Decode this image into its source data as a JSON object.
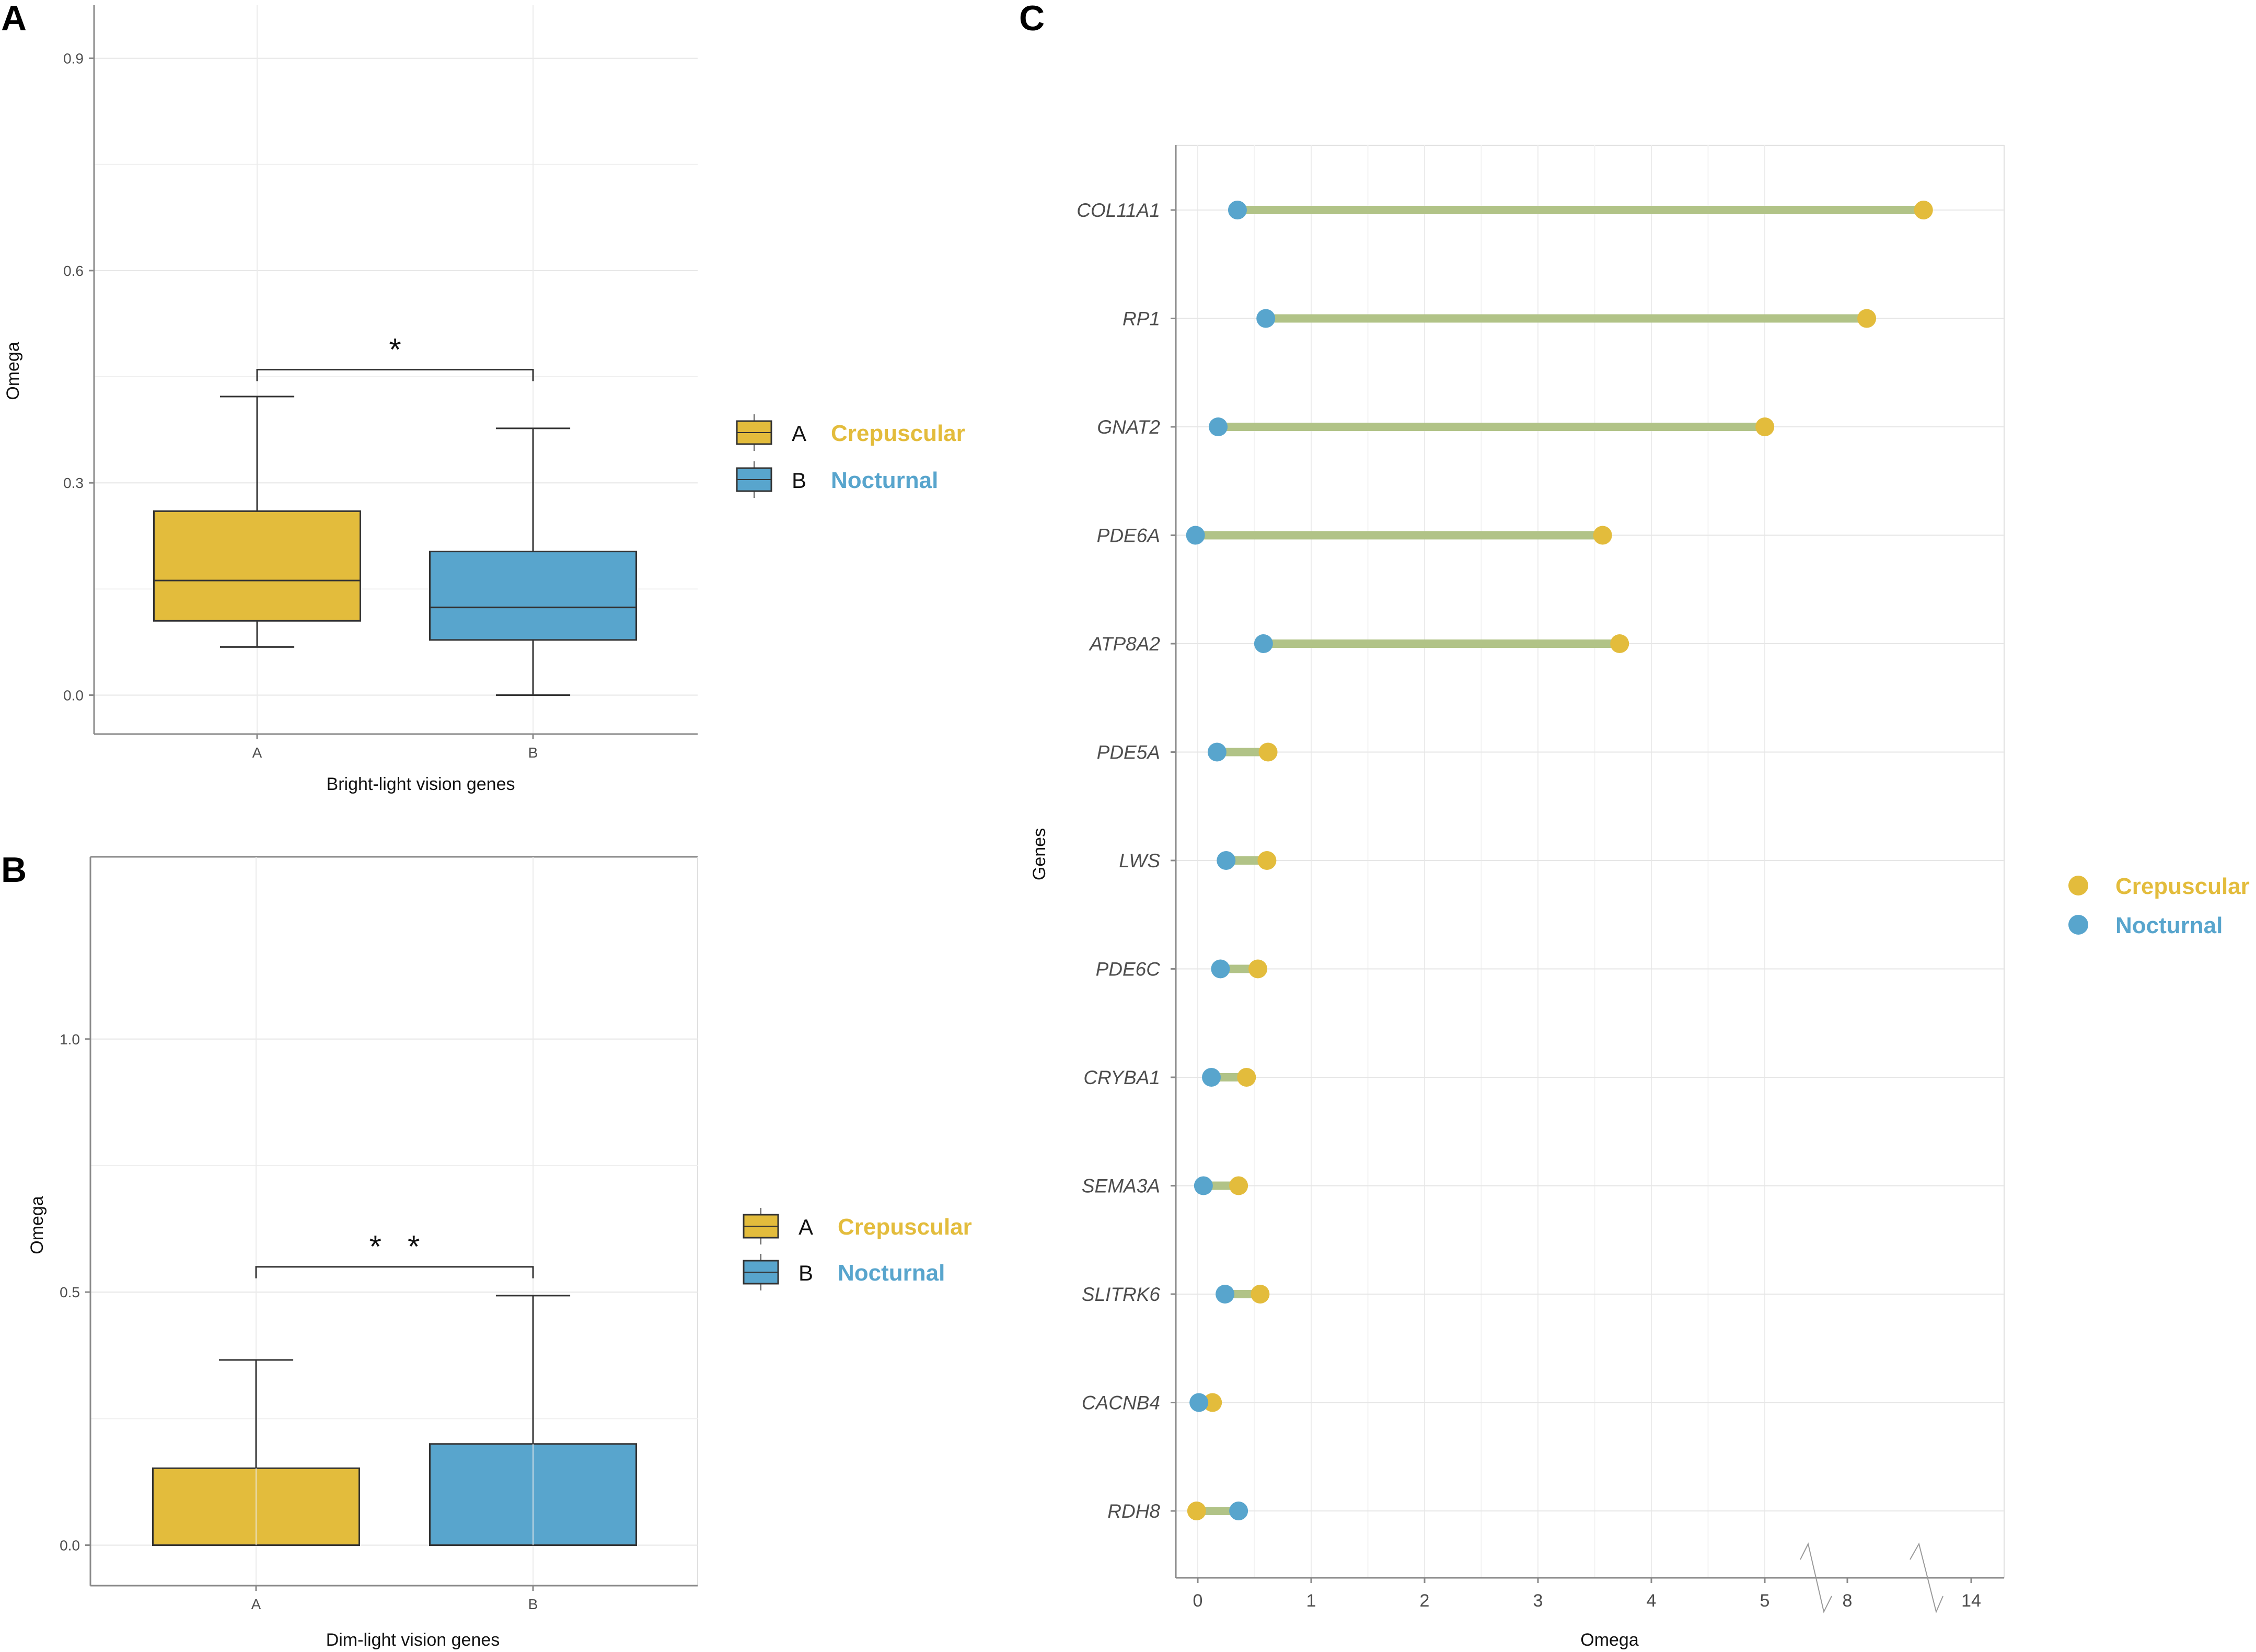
{
  "colors": {
    "crepuscular": "#E3BC3C",
    "nocturnal": "#58A5CD",
    "segment": "#B1C387",
    "grid": "#e6e6e6",
    "axis": "#8a8a8a"
  },
  "chart_data": [
    {
      "panel": "A",
      "type": "box",
      "xlabel": "Bright-light vision genes",
      "ylabel": "Omega",
      "ylim": [
        -0.055,
        0.975
      ],
      "yticks": [
        0.0,
        0.3,
        0.6,
        0.9
      ],
      "ytick_labels": [
        "0.0",
        "0.3",
        "0.6",
        "0.9"
      ],
      "categories": [
        "A",
        "B"
      ],
      "boxes": [
        {
          "category": "A",
          "group": "Crepuscular",
          "min": 0.068,
          "q1": 0.105,
          "median": 0.162,
          "q3": 0.26,
          "max": 0.422
        },
        {
          "category": "B",
          "group": "Nocturnal",
          "min": 0.0,
          "q1": 0.078,
          "median": 0.124,
          "q3": 0.203,
          "max": 0.377
        }
      ],
      "significance": {
        "label": "*",
        "y": 0.46
      },
      "legend": [
        {
          "key": "A",
          "name": "Crepuscular"
        },
        {
          "key": "B",
          "name": "Nocturnal"
        }
      ]
    },
    {
      "panel": "B",
      "type": "box",
      "xlabel": "Dim-light vision genes",
      "ylabel": "Omega",
      "ylim": [
        -0.08,
        1.36
      ],
      "yticks": [
        0.0,
        0.5,
        1.0
      ],
      "ytick_labels": [
        "0.0",
        "0.5",
        "1.0"
      ],
      "categories": [
        "A",
        "B"
      ],
      "boxes": [
        {
          "category": "A",
          "group": "Crepuscular",
          "min": 0.0,
          "q1": 0.0,
          "median": 0.0,
          "q3": 0.152,
          "max": 0.366
        },
        {
          "category": "B",
          "group": "Nocturnal",
          "min": 0.0,
          "q1": 0.0,
          "median": 0.0,
          "q3": 0.2,
          "max": 0.493
        }
      ],
      "significance": {
        "label": "*   *",
        "y": 0.55
      },
      "legend": [
        {
          "key": "A",
          "name": "Crepuscular"
        },
        {
          "key": "B",
          "name": "Nocturnal"
        }
      ]
    },
    {
      "panel": "C",
      "type": "dumbbell",
      "xlabel": "Omega",
      "ylabel": "Genes",
      "xticks": [
        "0",
        "1",
        "2",
        "3",
        "4",
        "5",
        "8",
        "14"
      ],
      "axis_break": "broken x-axis between 5 and 8 and between 8 and 14",
      "genes": [
        "COL11A1",
        "RP1",
        "GNAT2",
        "PDE6A",
        "ATP8A2",
        "PDE5A",
        "LWS",
        "PDE6C",
        "CRYBA1",
        "SEMA3A",
        "SLITRK6",
        "CACNB4",
        "RDH8"
      ],
      "crepuscular": [
        13.5,
        9.4,
        5.13,
        3.57,
        3.72,
        0.62,
        0.61,
        0.53,
        0.43,
        0.36,
        0.55,
        0.13,
        -0.01
      ],
      "nocturnal": [
        0.35,
        0.6,
        0.18,
        -0.02,
        0.58,
        0.17,
        0.25,
        0.2,
        0.12,
        0.05,
        0.24,
        0.01,
        0.36
      ],
      "legend": [
        "Crepuscular",
        "Nocturnal"
      ]
    }
  ]
}
